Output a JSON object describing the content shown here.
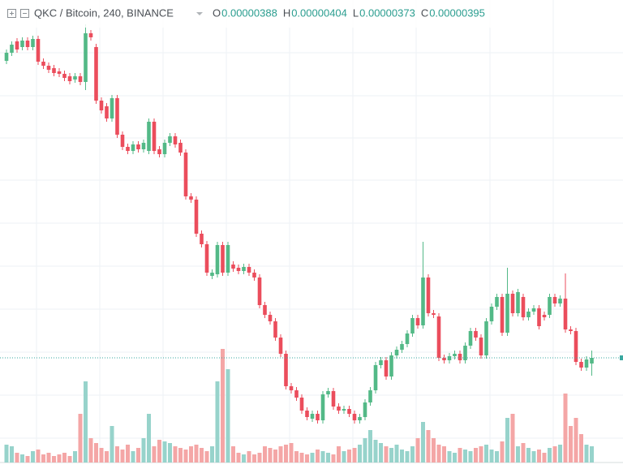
{
  "chart_data": {
    "type": "candlestick",
    "title": "QKC / Bitcoin, 240, BINANCE",
    "legend": [
      {
        "label": "O",
        "value": "0.00000388"
      },
      {
        "label": "H",
        "value": "0.00000404"
      },
      {
        "label": "L",
        "value": "0.00000373"
      },
      {
        "label": "C",
        "value": "0.00000395"
      }
    ],
    "up_color": "#53b987",
    "down_color": "#eb4d5c",
    "up_volume_color": "#97d3cb",
    "down_volume_color": "#f4a6a6",
    "ylim": [
      2.58e-06,
      8.36e-06
    ],
    "volume_ylim": [
      0,
      570
    ],
    "open": [
      7.61e-06,
      7.71e-06,
      7.85e-06,
      7.78e-06,
      7.86e-06,
      7.78e-06,
      7.88e-06,
      7.6e-06,
      7.55e-06,
      7.52e-06,
      7.48e-06,
      7.45e-06,
      7.42e-06,
      7.38e-06,
      7.42e-06,
      7.35e-06,
      7.95e-06,
      7.78e-06,
      7.12e-06,
      7.05e-06,
      6.9e-06,
      7.15e-06,
      6.7e-06,
      6.55e-06,
      6.5e-06,
      6.58e-06,
      6.52e-06,
      6.5e-06,
      6.86e-06,
      6.52e-06,
      6.46e-06,
      6.6e-06,
      6.68e-06,
      6.6e-06,
      6.48e-06,
      5.94e-06,
      5.9e-06,
      5.48e-06,
      5.35e-06,
      4.96e-06,
      4.98e-06,
      5.34e-06,
      5e-06,
      5.1e-06,
      5.06e-06,
      5.02e-06,
      5.07e-06,
      5e-06,
      4.94e-06,
      4.6e-06,
      4.48e-06,
      4.4e-06,
      4.2e-06,
      4e-06,
      3.6e-06,
      3.55e-06,
      3.46e-06,
      3.3e-06,
      3.2e-06,
      3.26e-06,
      3.18e-06,
      3.5e-06,
      3.54e-06,
      3.35e-06,
      3.3e-06,
      3.32e-06,
      3.26e-06,
      3.18e-06,
      3.22e-06,
      3.4e-06,
      3.55e-06,
      3.86e-06,
      3.92e-06,
      3.72e-06,
      3.98e-06,
      4.05e-06,
      4.12e-06,
      4.25e-06,
      4.44e-06,
      4.35e-06,
      4.94e-06,
      4.5e-06,
      4.46e-06,
      3.95e-06,
      3.92e-06,
      3.97e-06,
      4e-06,
      3.92e-06,
      4.1e-06,
      4.28e-06,
      4.2e-06,
      3.98e-06,
      4.4e-06,
      4.58e-06,
      4.7e-06,
      4.26e-06,
      4.74e-06,
      4.5e-06,
      4.7e-06,
      4.45e-06,
      4.52e-06,
      4.56e-06,
      4.48e-06,
      4.48e-06,
      4.7e-06,
      4.62e-06,
      4.68e-06,
      4.3e-06,
      4.28e-06,
      3.9e-06,
      3.83e-06,
      3.88e-06
    ],
    "high": [
      7.75e-06,
      7.85e-06,
      7.89e-06,
      7.9e-06,
      7.9e-06,
      7.92e-06,
      7.92e-06,
      7.64e-06,
      7.59e-06,
      7.56e-06,
      7.52e-06,
      7.49e-06,
      7.46e-06,
      7.46e-06,
      7.46e-06,
      8.06e-06,
      7.99e-06,
      7.82e-06,
      7.16e-06,
      7.09e-06,
      7.19e-06,
      7.19e-06,
      6.74e-06,
      6.59e-06,
      6.62e-06,
      6.62e-06,
      6.64e-06,
      6.9e-06,
      6.9e-06,
      6.56e-06,
      6.64e-06,
      6.72e-06,
      6.72e-06,
      6.64e-06,
      6.52e-06,
      5.98e-06,
      5.94e-06,
      5.52e-06,
      5.39e-06,
      5.04e-06,
      5.38e-06,
      5.38e-06,
      5.38e-06,
      5.14e-06,
      5.1e-06,
      5.11e-06,
      5.11e-06,
      5.04e-06,
      4.98e-06,
      4.64e-06,
      4.52e-06,
      4.44e-06,
      4.24e-06,
      4.04e-06,
      3.64e-06,
      3.59e-06,
      3.5e-06,
      3.34e-06,
      3.3e-06,
      3.3e-06,
      3.54e-06,
      3.58e-06,
      3.58e-06,
      3.39e-06,
      3.36e-06,
      3.36e-06,
      3.3e-06,
      3.26e-06,
      3.44e-06,
      3.59e-06,
      3.9e-06,
      3.96e-06,
      3.96e-06,
      4.02e-06,
      4.09e-06,
      4.16e-06,
      4.29e-06,
      4.48e-06,
      4.48e-06,
      5.38e-06,
      4.98e-06,
      4.54e-06,
      4.5e-06,
      3.99e-06,
      4.01e-06,
      4.04e-06,
      4.04e-06,
      4.14e-06,
      4.32e-06,
      4.32e-06,
      4.24e-06,
      4.44e-06,
      4.62e-06,
      4.74e-06,
      4.74e-06,
      5.06e-06,
      4.78e-06,
      4.8e-06,
      4.74e-06,
      4.56e-06,
      4.6e-06,
      4.6e-06,
      4.52e-06,
      4.74e-06,
      4.74e-06,
      4.72e-06,
      4.99e-06,
      4.34e-06,
      4.32e-06,
      3.94e-06,
      3.97e-06,
      4.04e-06
    ],
    "low": [
      7.57e-06,
      7.67e-06,
      7.71e-06,
      7.74e-06,
      7.74e-06,
      7.74e-06,
      7.56e-06,
      7.51e-06,
      7.46e-06,
      7.42e-06,
      7.41e-06,
      7.36e-06,
      7.32e-06,
      7.34e-06,
      7.31e-06,
      7.25e-06,
      7.86e-06,
      7.08e-06,
      6.96e-06,
      6.86e-06,
      6.86e-06,
      6.66e-06,
      6.51e-06,
      6.46e-06,
      6.46e-06,
      6.48e-06,
      6.48e-06,
      6.46e-06,
      6.46e-06,
      6.42e-06,
      6.42e-06,
      6.56e-06,
      6.54e-06,
      6.44e-06,
      5.9e-06,
      5.86e-06,
      5.44e-06,
      5.31e-06,
      4.96e-06,
      4.92e-06,
      4.94e-06,
      4.96e-06,
      4.96e-06,
      5.01e-06,
      4.98e-06,
      4.98e-06,
      4.96e-06,
      4.9e-06,
      4.56e-06,
      4.44e-06,
      4.36e-06,
      4.16e-06,
      3.96e-06,
      3.56e-06,
      3.51e-06,
      3.42e-06,
      3.26e-06,
      3.18e-06,
      3.16e-06,
      3.14e-06,
      3.14e-06,
      3.46e-06,
      3.31e-06,
      3.26e-06,
      3.26e-06,
      3.22e-06,
      3.14e-06,
      3.14e-06,
      3.18e-06,
      3.36e-06,
      3.51e-06,
      3.82e-06,
      3.68e-06,
      3.68e-06,
      3.94e-06,
      4.01e-06,
      4.08e-06,
      4.21e-06,
      4.31e-06,
      4.31e-06,
      4.46e-06,
      4.44e-06,
      3.91e-06,
      3.88e-06,
      3.88e-06,
      3.93e-06,
      3.88e-06,
      3.88e-06,
      4.06e-06,
      4.16e-06,
      3.94e-06,
      3.94e-06,
      4.36e-06,
      4.54e-06,
      4.22e-06,
      4.22e-06,
      4.46e-06,
      4.46e-06,
      4.41e-06,
      4.41e-06,
      4.48e-06,
      4.3e-06,
      4.41e-06,
      4.44e-06,
      4.58e-06,
      4.58e-06,
      4.26e-06,
      4.24e-06,
      3.86e-06,
      3.79e-06,
      3.79e-06,
      3.73e-06
    ],
    "close": [
      7.71e-06,
      7.81e-06,
      7.75e-06,
      7.86e-06,
      7.78e-06,
      7.88e-06,
      7.6e-06,
      7.55e-06,
      7.5e-06,
      7.46e-06,
      7.45e-06,
      7.4e-06,
      7.36e-06,
      7.42e-06,
      7.35e-06,
      7.95e-06,
      7.9e-06,
      7.12e-06,
      7e-06,
      6.9e-06,
      7.15e-06,
      6.7e-06,
      6.55e-06,
      6.5e-06,
      6.58e-06,
      6.52e-06,
      6.6e-06,
      6.86e-06,
      6.5e-06,
      6.46e-06,
      6.6e-06,
      6.68e-06,
      6.58e-06,
      6.48e-06,
      5.94e-06,
      5.9e-06,
      5.48e-06,
      5.35e-06,
      5e-06,
      5e-06,
      5.34e-06,
      5e-06,
      5.34e-06,
      5.05e-06,
      5.02e-06,
      5.07e-06,
      5e-06,
      4.94e-06,
      4.6e-06,
      4.48e-06,
      4.4e-06,
      4.2e-06,
      4e-06,
      3.6e-06,
      3.55e-06,
      3.46e-06,
      3.3e-06,
      3.22e-06,
      3.26e-06,
      3.18e-06,
      3.5e-06,
      3.54e-06,
      3.35e-06,
      3.3e-06,
      3.32e-06,
      3.26e-06,
      3.18e-06,
      3.22e-06,
      3.4e-06,
      3.55e-06,
      3.86e-06,
      3.92e-06,
      3.72e-06,
      3.98e-06,
      4.05e-06,
      4.12e-06,
      4.25e-06,
      4.44e-06,
      4.35e-06,
      4.94e-06,
      4.5e-06,
      4.48e-06,
      3.95e-06,
      3.92e-06,
      3.97e-06,
      4e-06,
      3.92e-06,
      4.1e-06,
      4.28e-06,
      4.2e-06,
      3.98e-06,
      4.4e-06,
      4.58e-06,
      4.7e-06,
      4.26e-06,
      4.74e-06,
      4.5e-06,
      4.76e-06,
      4.45e-06,
      4.52e-06,
      4.56e-06,
      4.34e-06,
      4.45e-06,
      4.7e-06,
      4.62e-06,
      4.68e-06,
      4.3e-06,
      4.28e-06,
      3.9e-06,
      3.83e-06,
      3.93e-06,
      3.95e-06
    ],
    "volume": [
      22,
      20,
      12,
      10,
      8,
      14,
      16,
      10,
      12,
      8,
      10,
      12,
      8,
      14,
      60,
      100,
      30,
      24,
      18,
      14,
      45,
      20,
      16,
      22,
      14,
      18,
      30,
      60,
      20,
      28,
      26,
      24,
      20,
      18,
      16,
      20,
      22,
      18,
      14,
      20,
      100,
      140,
      115,
      20,
      12,
      10,
      14,
      10,
      12,
      20,
      18,
      16,
      20,
      22,
      24,
      14,
      12,
      10,
      12,
      16,
      14,
      12,
      10,
      20,
      14,
      16,
      18,
      22,
      30,
      40,
      28,
      24,
      20,
      18,
      22,
      16,
      14,
      20,
      30,
      50,
      40,
      30,
      22,
      20,
      14,
      12,
      18,
      16,
      14,
      18,
      20,
      22,
      16,
      14,
      26,
      55,
      60,
      20,
      24,
      18,
      14,
      16,
      12,
      18,
      20,
      22,
      85,
      45,
      55,
      35,
      22,
      20
    ]
  }
}
